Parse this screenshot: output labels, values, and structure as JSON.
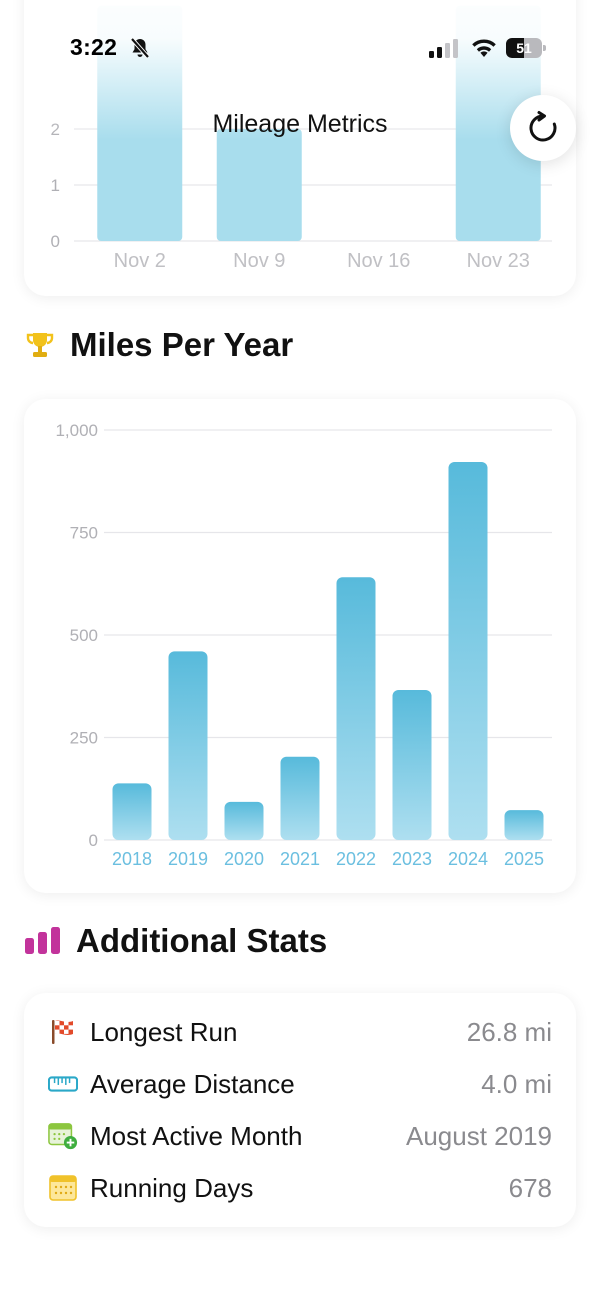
{
  "status_bar": {
    "time": "3:22",
    "battery": "51",
    "battery_level": 0.51
  },
  "header": {
    "title": "Mileage Metrics"
  },
  "weekly_chart": {
    "chart_data": {
      "type": "bar",
      "categories": [
        "Nov 2",
        "Nov 9",
        "Nov 16",
        "Nov 23"
      ],
      "values": [
        4.2,
        2.0,
        0,
        4.2
      ],
      "y_ticks": [
        "0",
        "1",
        "2"
      ],
      "ylim": [
        0,
        4.2
      ]
    }
  },
  "miles_per_year": {
    "title": "Miles Per Year",
    "title_icon": "trophy-icon",
    "chart_data": {
      "type": "bar",
      "categories": [
        "2018",
        "2019",
        "2020",
        "2021",
        "2022",
        "2023",
        "2024",
        "2025"
      ],
      "values": [
        138,
        460,
        93,
        203,
        641,
        366,
        922,
        73
      ],
      "y_ticks": [
        {
          "value": 0,
          "label": "0"
        },
        {
          "value": 250,
          "label": "250"
        },
        {
          "value": 500,
          "label": "500"
        },
        {
          "value": 750,
          "label": "750"
        },
        {
          "value": 1000,
          "label": "1,000"
        }
      ],
      "ylim": [
        0,
        1000
      ],
      "grid": true,
      "bar_color": "#5bbcdc"
    }
  },
  "additional_stats": {
    "title": "Additional Stats",
    "title_icon": "bar-chart-icon",
    "items": [
      {
        "label": "Longest Run",
        "value": "26.8 mi",
        "icon": "checkered-flag-icon"
      },
      {
        "label": "Average Distance",
        "value": "4.0 mi",
        "icon": "ruler-icon"
      },
      {
        "label": "Most Active Month",
        "value": "August 2019",
        "icon": "calendar-add-icon"
      },
      {
        "label": "Running Days",
        "value": "678",
        "icon": "calendar-icon"
      }
    ]
  },
  "colors": {
    "bar": "#5bbcdc",
    "bar_light": "#a8dded",
    "axis_text": "#b0b0b5",
    "x_label": "#6bbfe0",
    "stats_accent": "#c2339b"
  }
}
